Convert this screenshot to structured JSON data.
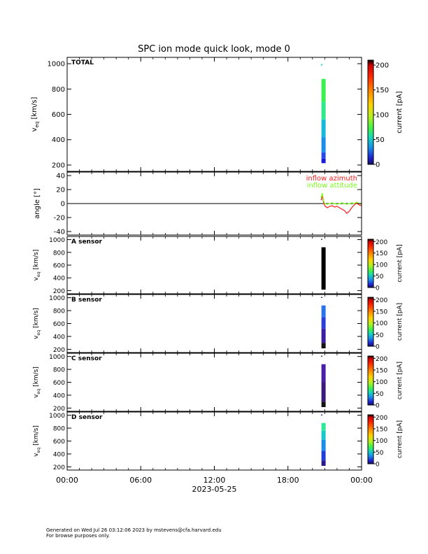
{
  "title": "SPC ion mode quick look, mode 0",
  "footer": {
    "line1": "Generated on Wed Jul 26 03:12:06 2023 by mstevens@cfa.harvard.edu",
    "line2": "For browse purposes only."
  },
  "chart_data": [
    {
      "type": "heatmap",
      "panel_label": "TOTAL",
      "ylabel_main": "v",
      "ylabel_sub": "eq",
      "ylabel_unit": " [km/s]",
      "ylim": [
        150,
        1050
      ],
      "yticks": [
        200,
        400,
        600,
        800,
        1000
      ],
      "colorbar": {
        "label": "current [pA]",
        "range": [
          0,
          210
        ],
        "ticks": [
          0,
          50,
          100,
          150,
          200
        ]
      },
      "columns": [
        {
          "t": 20.9,
          "segments": [
            {
              "vmin": 215,
              "vmax": 250,
              "color": "#1b1bd6"
            },
            {
              "vmin": 250,
              "vmax": 300,
              "color": "#2a4ae6"
            },
            {
              "vmin": 300,
              "vmax": 420,
              "color": "#1a8ee8"
            },
            {
              "vmin": 420,
              "vmax": 560,
              "color": "#18b9d8"
            },
            {
              "vmin": 560,
              "vmax": 700,
              "color": "#2ee88a"
            },
            {
              "vmin": 700,
              "vmax": 880,
              "color": "#3bf04f"
            }
          ]
        },
        {
          "t": 20.75,
          "segments": [
            {
              "vmin": 985,
              "vmax": 998,
              "color": "#2ee8d8"
            }
          ]
        }
      ]
    },
    {
      "type": "line",
      "ylabel": "angle [°]",
      "ylim": [
        -45,
        45
      ],
      "yticks": [
        -40,
        -20,
        0,
        20,
        40
      ],
      "zero_line": true,
      "series": [
        {
          "name": "inflow azimuth",
          "color": "#ff1a1a",
          "x": [
            20.7,
            20.8,
            20.9,
            21.0,
            21.2,
            21.4,
            21.6,
            21.8,
            22.0,
            22.2,
            22.4,
            22.6,
            22.8,
            23.0,
            23.2,
            23.4,
            23.6,
            23.8,
            24.0
          ],
          "y": [
            5,
            10,
            2,
            -3,
            -6,
            -4,
            -3,
            -5,
            -4,
            -6,
            -8,
            -10,
            -14,
            -11,
            -6,
            -2,
            1,
            -2,
            -3
          ]
        },
        {
          "name": "inflow attitude",
          "color": "#7cff1a",
          "x": [
            20.7,
            20.8,
            20.9,
            21.0,
            21.2,
            21.4,
            21.6,
            21.8,
            22.0,
            22.2,
            22.4,
            22.6,
            22.8,
            23.0,
            23.2,
            23.4,
            23.6,
            23.8,
            24.0
          ],
          "y": [
            8,
            15,
            4,
            0,
            -1,
            0,
            1,
            0,
            -1,
            0,
            1,
            0,
            -1,
            0,
            1,
            0,
            2,
            0,
            -1
          ]
        }
      ]
    },
    {
      "type": "heatmap",
      "panel_label": "A sensor",
      "ylabel_main": "v",
      "ylabel_sub": "eq",
      "ylabel_unit": " [km/s]",
      "ylim": [
        150,
        1050
      ],
      "yticks": [
        200,
        400,
        600,
        800,
        1000
      ],
      "colorbar": {
        "label": "current [pA]",
        "range": [
          0,
          210
        ],
        "ticks": [
          0,
          50,
          100,
          150,
          200
        ]
      },
      "columns": [
        {
          "t": 20.9,
          "segments": [
            {
              "vmin": 215,
              "vmax": 880,
              "color": "#000000"
            }
          ]
        },
        {
          "t": 20.75,
          "segments": [
            {
              "vmin": 1000,
              "vmax": 1012,
              "color": "#6b2a7a"
            }
          ]
        }
      ]
    },
    {
      "type": "heatmap",
      "panel_label": "B sensor",
      "ylabel_main": "v",
      "ylabel_sub": "eq",
      "ylabel_unit": " [km/s]",
      "ylim": [
        150,
        1050
      ],
      "yticks": [
        200,
        400,
        600,
        800,
        1000
      ],
      "colorbar": {
        "label": "current [pA]",
        "range": [
          0,
          210
        ],
        "ticks": [
          0,
          50,
          100,
          150,
          200
        ]
      },
      "columns": [
        {
          "t": 20.9,
          "segments": [
            {
              "vmin": 215,
              "vmax": 300,
              "color": "#141414"
            },
            {
              "vmin": 300,
              "vmax": 520,
              "color": "#3a1fa0"
            },
            {
              "vmin": 520,
              "vmax": 700,
              "color": "#2b3fd8"
            },
            {
              "vmin": 700,
              "vmax": 880,
              "color": "#2a73e8"
            }
          ]
        },
        {
          "t": 20.75,
          "segments": [
            {
              "vmin": 1000,
              "vmax": 1012,
              "color": "#5a2a8a"
            }
          ]
        }
      ]
    },
    {
      "type": "heatmap",
      "panel_label": "C sensor",
      "ylabel_main": "v",
      "ylabel_sub": "eq",
      "ylabel_unit": " [km/s]",
      "ylim": [
        150,
        1050
      ],
      "yticks": [
        200,
        400,
        600,
        800,
        1000
      ],
      "colorbar": {
        "label": "current [pA]",
        "range": [
          0,
          210
        ],
        "ticks": [
          0,
          50,
          100,
          150,
          200
        ]
      },
      "columns": [
        {
          "t": 20.9,
          "segments": [
            {
              "vmin": 215,
              "vmax": 300,
              "color": "#141414"
            },
            {
              "vmin": 300,
              "vmax": 600,
              "color": "#3a1a7a"
            },
            {
              "vmin": 600,
              "vmax": 880,
              "color": "#4a1fa8"
            }
          ]
        },
        {
          "t": 20.75,
          "segments": [
            {
              "vmin": 1000,
              "vmax": 1012,
              "color": "#5a2a8a"
            }
          ]
        }
      ]
    },
    {
      "type": "heatmap",
      "panel_label": "D sensor",
      "ylabel_main": "v",
      "ylabel_sub": "eq",
      "ylabel_unit": " [km/s]",
      "ylim": [
        150,
        1050
      ],
      "yticks": [
        200,
        400,
        600,
        800,
        1000
      ],
      "colorbar": {
        "label": "current [pA]",
        "range": [
          0,
          210
        ],
        "ticks": [
          0,
          50,
          100,
          150,
          200
        ]
      },
      "columns": [
        {
          "t": 20.9,
          "segments": [
            {
              "vmin": 215,
              "vmax": 300,
              "color": "#2a1a8a"
            },
            {
              "vmin": 300,
              "vmax": 450,
              "color": "#1f3fd8"
            },
            {
              "vmin": 450,
              "vmax": 620,
              "color": "#1a8ee8"
            },
            {
              "vmin": 620,
              "vmax": 760,
              "color": "#18c8c8"
            },
            {
              "vmin": 760,
              "vmax": 880,
              "color": "#2ee89a"
            }
          ]
        },
        {
          "t": 20.75,
          "segments": [
            {
              "vmin": 1000,
              "vmax": 1012,
              "color": "#3a3a9a"
            }
          ]
        }
      ]
    }
  ],
  "x_axis": {
    "range_hours": [
      0,
      24
    ],
    "tick_hours": [
      0,
      6,
      12,
      18,
      24
    ],
    "tick_labels": [
      "00:00",
      "06:00",
      "12:00",
      "18:00",
      "00:00"
    ],
    "date_label": "2023-05-25"
  }
}
